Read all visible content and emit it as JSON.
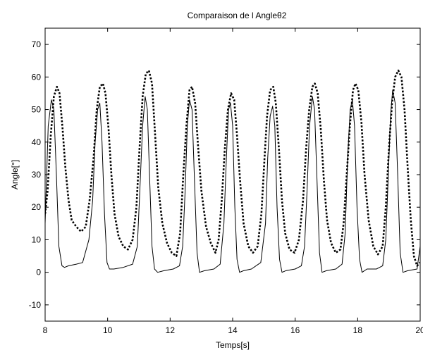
{
  "chart_data": {
    "type": "line",
    "title": "Comparaison de l Angleθ2",
    "xlabel": "Temps[s]",
    "ylabel": "Angle[°]",
    "xlim": [
      8,
      20
    ],
    "ylim": [
      -15,
      75
    ],
    "xticks": [
      8,
      10,
      12,
      14,
      16,
      18,
      20
    ],
    "yticks": [
      -10,
      0,
      10,
      20,
      30,
      40,
      50,
      60,
      70
    ],
    "grid": false,
    "legend": "none",
    "colors": {
      "axis": "#000000",
      "solid": "#000000",
      "dotted": "#000000"
    },
    "series": [
      {
        "style": "solid",
        "x": [
          8.0,
          8.1,
          8.2,
          8.28,
          8.36,
          8.44,
          8.54,
          8.62,
          8.75,
          9.0,
          9.2,
          9.4,
          9.52,
          9.6,
          9.68,
          9.75,
          9.82,
          9.9,
          9.98,
          10.06,
          10.2,
          10.5,
          10.8,
          10.95,
          11.03,
          11.12,
          11.2,
          11.27,
          11.34,
          11.42,
          11.5,
          11.6,
          11.8,
          12.1,
          12.3,
          12.4,
          12.48,
          12.55,
          12.62,
          12.7,
          12.78,
          12.86,
          12.94,
          13.1,
          13.4,
          13.6,
          13.72,
          13.8,
          13.87,
          13.93,
          14.0,
          14.07,
          14.14,
          14.22,
          14.35,
          14.6,
          14.9,
          15.05,
          15.12,
          15.2,
          15.28,
          15.35,
          15.42,
          15.5,
          15.58,
          15.7,
          16.0,
          16.2,
          16.3,
          16.38,
          16.46,
          16.55,
          16.62,
          16.7,
          16.78,
          16.86,
          17.0,
          17.3,
          17.5,
          17.6,
          17.68,
          17.76,
          17.83,
          17.9,
          17.98,
          18.06,
          18.14,
          18.3,
          18.6,
          18.8,
          18.9,
          18.98,
          19.05,
          19.12,
          19.2,
          19.28,
          19.36,
          19.45,
          19.6,
          19.9,
          20.0
        ],
        "y": [
          15,
          45,
          53,
          50,
          30,
          8,
          2,
          1.5,
          2,
          2.5,
          3,
          10,
          22,
          40,
          50,
          52,
          40,
          18,
          3,
          1,
          1,
          1.5,
          2.5,
          8,
          25,
          45,
          54,
          50,
          30,
          8,
          1,
          0,
          0.5,
          1,
          2,
          8,
          25,
          45,
          53,
          50,
          28,
          6,
          0,
          0.5,
          1,
          2.5,
          15,
          35,
          50,
          52,
          45,
          20,
          4,
          0,
          0.5,
          1,
          3,
          15,
          35,
          48,
          51,
          45,
          20,
          4,
          0,
          0.5,
          1,
          2,
          8,
          25,
          45,
          54,
          50,
          28,
          6,
          0,
          0.5,
          1,
          2.5,
          12,
          35,
          50,
          53,
          45,
          20,
          4,
          0,
          1,
          1,
          2,
          10,
          30,
          48,
          56,
          52,
          30,
          6,
          0,
          0.5,
          1,
          8
        ]
      },
      {
        "style": "dotted",
        "x": [
          8.0,
          8.08,
          8.18,
          8.28,
          8.38,
          8.46,
          8.56,
          8.65,
          8.75,
          8.85,
          9.0,
          9.15,
          9.3,
          9.42,
          9.55,
          9.65,
          9.75,
          9.85,
          9.93,
          10.03,
          10.12,
          10.22,
          10.35,
          10.5,
          10.65,
          10.8,
          10.92,
          11.02,
          11.12,
          11.22,
          11.32,
          11.42,
          11.52,
          11.62,
          11.75,
          11.9,
          12.05,
          12.2,
          12.32,
          12.42,
          12.52,
          12.62,
          12.7,
          12.8,
          12.9,
          13.0,
          13.15,
          13.3,
          13.45,
          13.55,
          13.65,
          13.75,
          13.85,
          13.95,
          14.05,
          14.14,
          14.24,
          14.35,
          14.5,
          14.65,
          14.8,
          14.92,
          15.02,
          15.1,
          15.2,
          15.3,
          15.38,
          15.48,
          15.58,
          15.68,
          15.82,
          15.98,
          16.12,
          16.25,
          16.35,
          16.45,
          16.55,
          16.63,
          16.72,
          16.82,
          16.92,
          17.02,
          17.15,
          17.3,
          17.45,
          17.55,
          17.65,
          17.75,
          17.85,
          17.93,
          18.02,
          18.12,
          18.22,
          18.35,
          18.5,
          18.65,
          18.8,
          18.9,
          19.0,
          19.1,
          19.2,
          19.3,
          19.4,
          19.5,
          19.6,
          19.7,
          19.8,
          19.9,
          20.0
        ],
        "y": [
          18,
          25,
          42,
          54,
          57,
          55,
          44,
          32,
          22,
          16,
          14,
          12.5,
          14,
          22,
          35,
          50,
          57,
          58,
          55,
          44,
          30,
          18,
          11,
          8,
          7,
          10,
          20,
          38,
          54,
          61,
          62,
          58,
          42,
          26,
          15,
          9,
          6,
          5,
          12,
          30,
          45,
          56,
          57,
          52,
          38,
          25,
          14,
          9,
          6,
          10,
          22,
          38,
          50,
          55,
          53,
          42,
          28,
          15,
          8,
          6,
          8,
          18,
          35,
          48,
          56,
          57,
          52,
          38,
          22,
          12,
          7,
          6,
          10,
          22,
          38,
          50,
          57,
          58,
          55,
          44,
          28,
          16,
          9,
          6,
          7,
          15,
          30,
          45,
          56,
          58,
          56,
          46,
          30,
          16,
          8,
          5.5,
          8,
          20,
          38,
          52,
          60,
          62,
          60,
          50,
          32,
          16,
          5,
          2,
          3
        ]
      }
    ]
  }
}
